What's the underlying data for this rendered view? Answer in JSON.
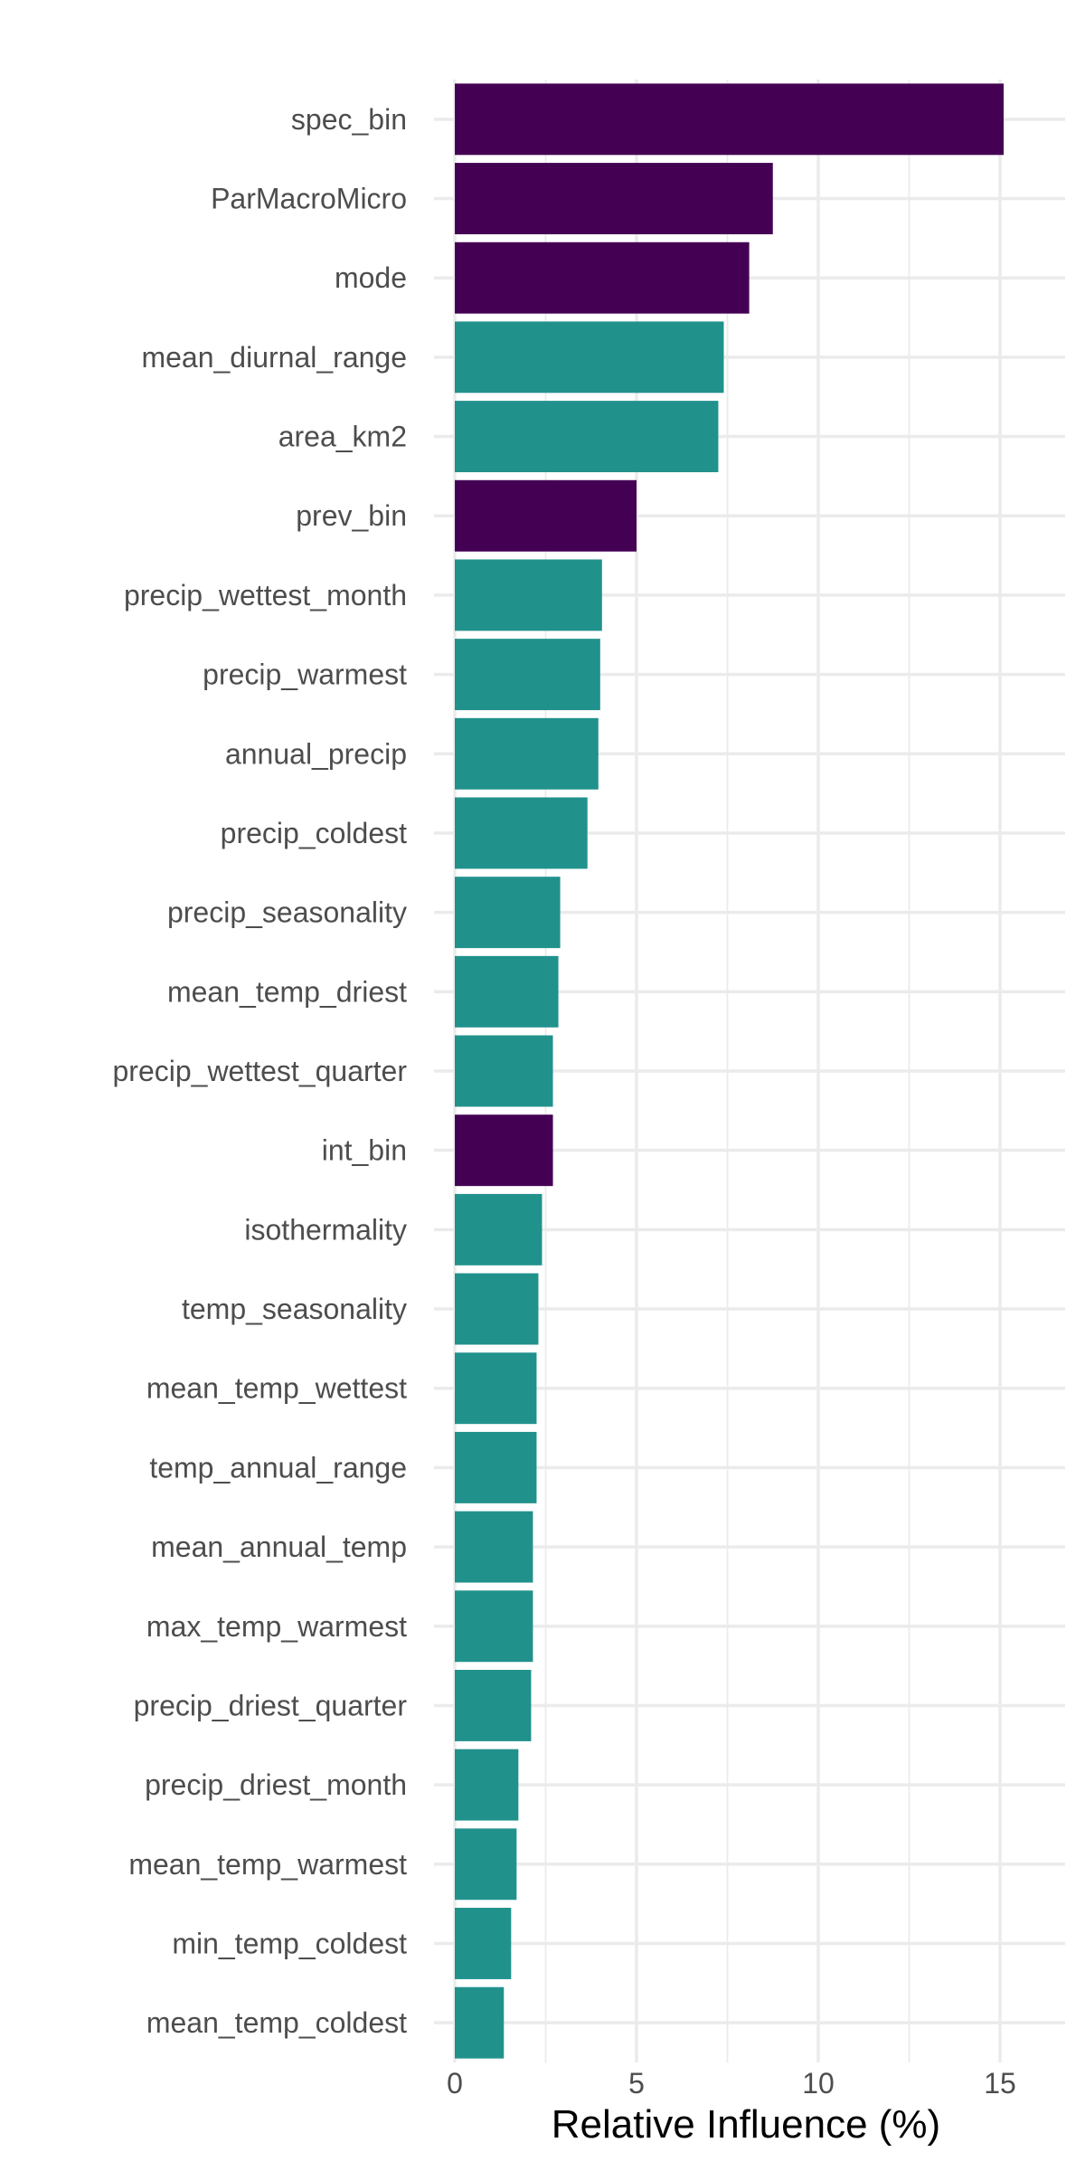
{
  "chart_data": {
    "type": "bar",
    "orientation": "horizontal",
    "title": "",
    "xlabel": "Relative Influence (%)",
    "ylabel": "",
    "xlim": [
      0,
      16.5
    ],
    "xticks": [
      0,
      5,
      10,
      15
    ],
    "grid": true,
    "legend": "none",
    "colors": {
      "purple": "#440154",
      "teal": "#21918c"
    },
    "bars": [
      {
        "label": "spec_bin",
        "value": 15.1,
        "color": "purple"
      },
      {
        "label": "ParMacroMicro",
        "value": 8.75,
        "color": "purple"
      },
      {
        "label": "mode",
        "value": 8.1,
        "color": "purple"
      },
      {
        "label": "mean_diurnal_range",
        "value": 7.4,
        "color": "teal"
      },
      {
        "label": "area_km2",
        "value": 7.25,
        "color": "teal"
      },
      {
        "label": "prev_bin",
        "value": 5.0,
        "color": "purple"
      },
      {
        "label": "precip_wettest_month",
        "value": 4.05,
        "color": "teal"
      },
      {
        "label": "precip_warmest",
        "value": 4.0,
        "color": "teal"
      },
      {
        "label": "annual_precip",
        "value": 3.95,
        "color": "teal"
      },
      {
        "label": "precip_coldest",
        "value": 3.65,
        "color": "teal"
      },
      {
        "label": "precip_seasonality",
        "value": 2.9,
        "color": "teal"
      },
      {
        "label": "mean_temp_driest",
        "value": 2.85,
        "color": "teal"
      },
      {
        "label": "precip_wettest_quarter",
        "value": 2.7,
        "color": "teal"
      },
      {
        "label": "int_bin",
        "value": 2.7,
        "color": "purple"
      },
      {
        "label": "isothermality",
        "value": 2.4,
        "color": "teal"
      },
      {
        "label": "temp_seasonality",
        "value": 2.3,
        "color": "teal"
      },
      {
        "label": "mean_temp_wettest",
        "value": 2.25,
        "color": "teal"
      },
      {
        "label": "temp_annual_range",
        "value": 2.25,
        "color": "teal"
      },
      {
        "label": "mean_annual_temp",
        "value": 2.15,
        "color": "teal"
      },
      {
        "label": "max_temp_warmest",
        "value": 2.15,
        "color": "teal"
      },
      {
        "label": "precip_driest_quarter",
        "value": 2.1,
        "color": "teal"
      },
      {
        "label": "precip_driest_month",
        "value": 1.75,
        "color": "teal"
      },
      {
        "label": "mean_temp_warmest",
        "value": 1.7,
        "color": "teal"
      },
      {
        "label": "min_temp_coldest",
        "value": 1.55,
        "color": "teal"
      },
      {
        "label": "mean_temp_coldest",
        "value": 1.35,
        "color": "teal"
      }
    ]
  }
}
